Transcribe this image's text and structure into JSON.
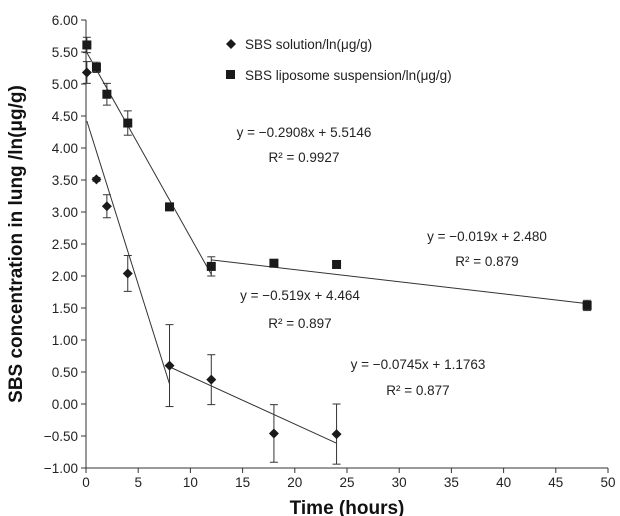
{
  "chart_data": {
    "type": "scatter",
    "xlabel": "Time (hours)",
    "ylabel": "SBS concentration in lung /ln(μg/g)",
    "xlim": [
      0,
      50
    ],
    "ylim": [
      -1.0,
      6.0
    ],
    "x_ticks": [
      "0",
      "5",
      "10",
      "15",
      "20",
      "25",
      "30",
      "35",
      "40",
      "45",
      "50"
    ],
    "y_ticks": [
      "-1.00",
      "-0.50",
      "0.00",
      "0.50",
      "1.00",
      "1.50",
      "2.00",
      "2.50",
      "3.00",
      "3.50",
      "4.00",
      "4.50",
      "5.00",
      "5.50",
      "6.00"
    ],
    "series": [
      {
        "name": "SBS solution/ln(μg/g)",
        "marker": "diamond",
        "color": "#1a1a1a",
        "points": [
          {
            "x": 0.083,
            "y": 5.18,
            "err": 0.17
          },
          {
            "x": 1,
            "y": 3.51,
            "err": 0.03
          },
          {
            "x": 2,
            "y": 3.09,
            "err": 0.18
          },
          {
            "x": 4,
            "y": 2.04,
            "err": 0.28
          },
          {
            "x": 8,
            "y": 0.6,
            "err": 0.64
          },
          {
            "x": 12,
            "y": 0.38,
            "err": 0.39
          },
          {
            "x": 18,
            "y": -0.46,
            "err": 0.45
          },
          {
            "x": 24,
            "y": -0.47,
            "err": 0.47
          }
        ],
        "fits": [
          {
            "equation": "y = −0.519x + 4.464",
            "r2": "R² = 0.897",
            "slope": -0.519,
            "intercept": 4.464,
            "x_range": [
              0.083,
              8
            ]
          },
          {
            "equation": "y = −0.0745x + 1.1763",
            "r2": "R² = 0.877",
            "slope": -0.0745,
            "intercept": 1.1763,
            "x_range": [
              8,
              24
            ]
          }
        ]
      },
      {
        "name": "SBS liposome suspension/ln(μg/g)",
        "marker": "square",
        "color": "#1a1a1a",
        "points": [
          {
            "x": 0.083,
            "y": 5.61,
            "err": 0.12
          },
          {
            "x": 1,
            "y": 5.26,
            "err": 0.08
          },
          {
            "x": 2,
            "y": 4.84,
            "err": 0.17
          },
          {
            "x": 4,
            "y": 4.39,
            "err": 0.19
          },
          {
            "x": 8,
            "y": 3.08,
            "err": 0.04
          },
          {
            "x": 12,
            "y": 2.15,
            "err": 0.15
          },
          {
            "x": 18,
            "y": 2.2,
            "err": 0.03
          },
          {
            "x": 24,
            "y": 2.18,
            "err": 0.04
          },
          {
            "x": 48,
            "y": 1.54,
            "err": 0.08
          }
        ],
        "fits": [
          {
            "equation": "y = −0.2908x + 5.5146",
            "r2": "R² = 0.9927",
            "slope": -0.2908,
            "intercept": 5.5146,
            "x_range": [
              0.083,
              12
            ]
          },
          {
            "equation": "y = −0.019x + 2.480",
            "r2": "R² = 0.879",
            "slope": -0.019,
            "intercept": 2.48,
            "x_range": [
              12,
              48
            ]
          }
        ]
      }
    ],
    "legend_position": "top-center",
    "grid": false
  }
}
